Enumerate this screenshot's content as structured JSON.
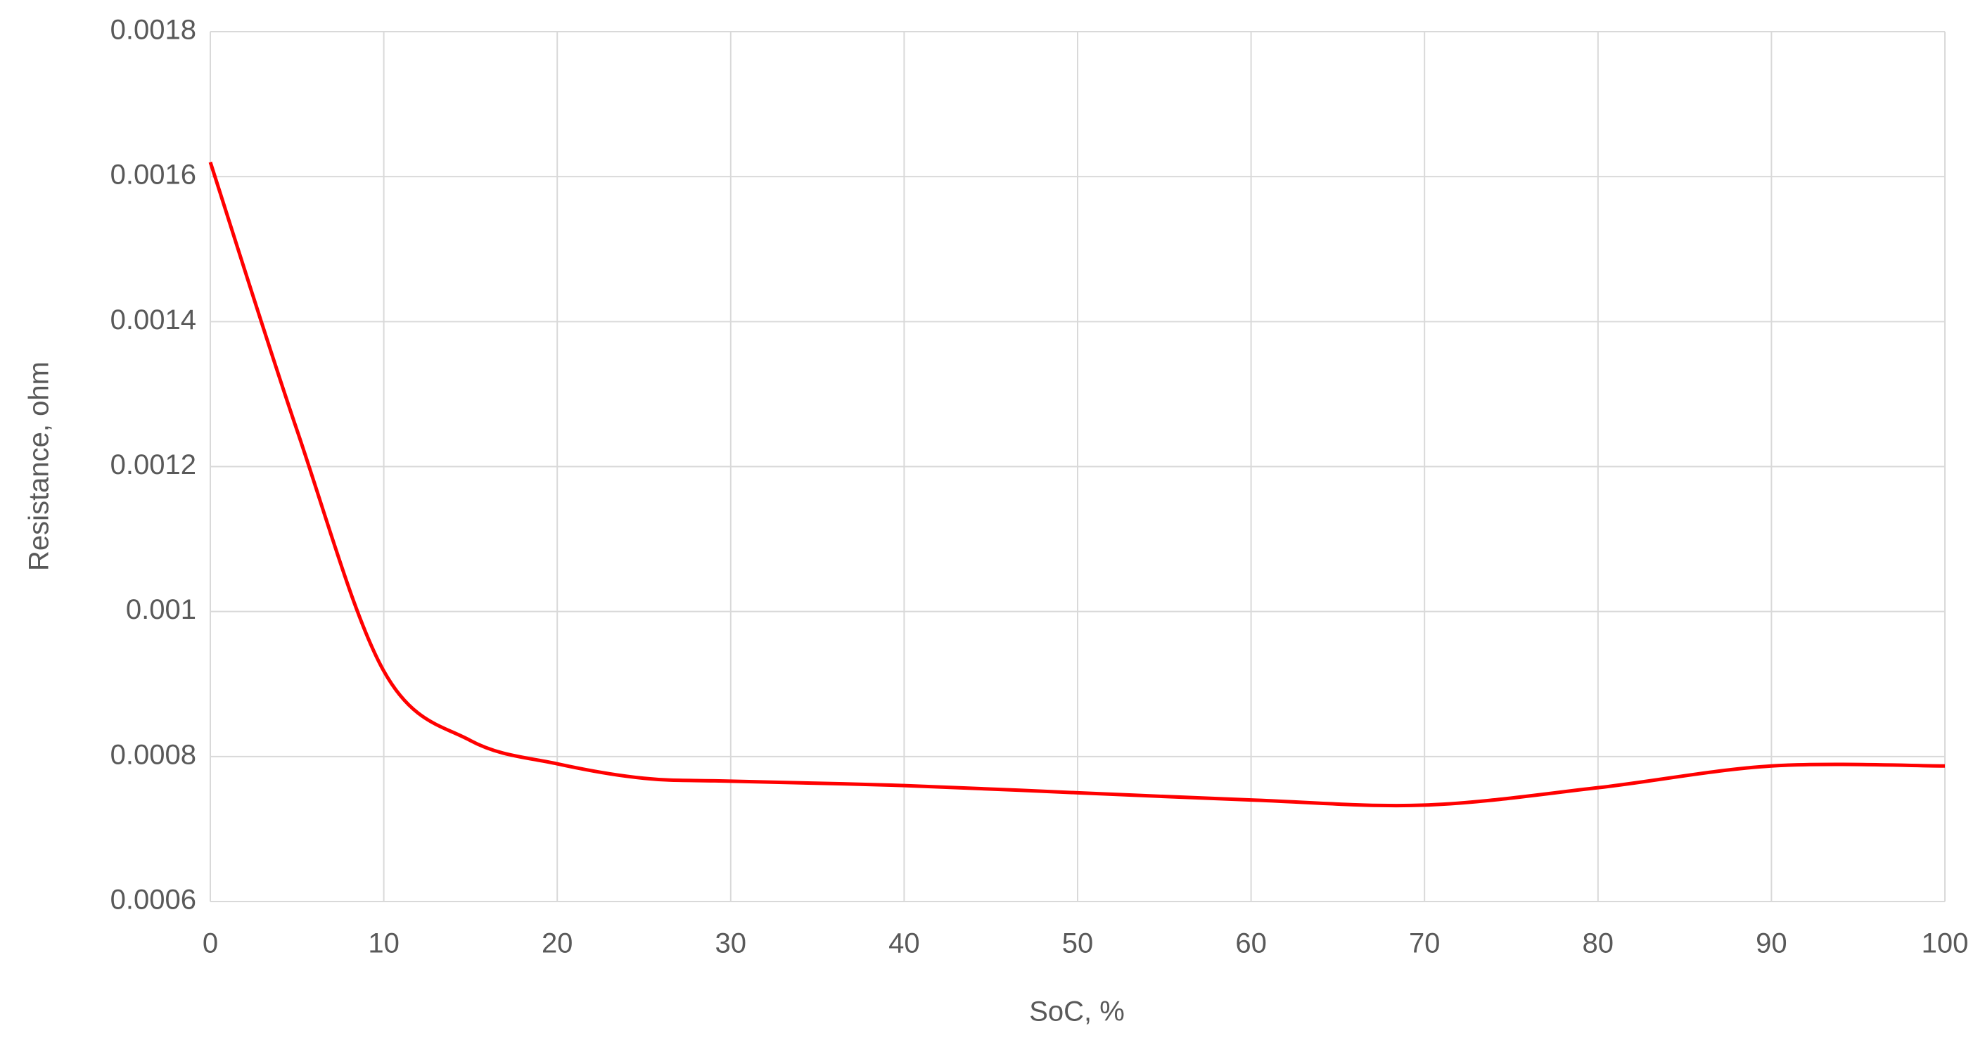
{
  "chart_data": {
    "type": "line",
    "x_label": "SoC, %",
    "y_label": "Resistance, ohm",
    "x": [
      0,
      5,
      10,
      15,
      20,
      25,
      30,
      40,
      50,
      60,
      70,
      80,
      90,
      100
    ],
    "series": [
      {
        "color": "#ff0000",
        "values": [
          0.00162,
          0.00125,
          0.000918,
          0.000822,
          0.00079,
          0.00077,
          0.000766,
          0.00076,
          0.00075,
          0.00074,
          0.000733,
          0.000757,
          0.000787,
          0.000787
        ]
      }
    ],
    "xlim": [
      0,
      100
    ],
    "xticks": [
      0,
      10,
      20,
      30,
      40,
      50,
      60,
      70,
      80,
      90,
      100
    ],
    "ylim": [
      0.0006,
      0.0018
    ],
    "yticks": [
      0.0006,
      0.0008,
      0.001,
      0.0012,
      0.0014,
      0.0016,
      0.0018
    ],
    "grid": true,
    "smooth": true
  }
}
